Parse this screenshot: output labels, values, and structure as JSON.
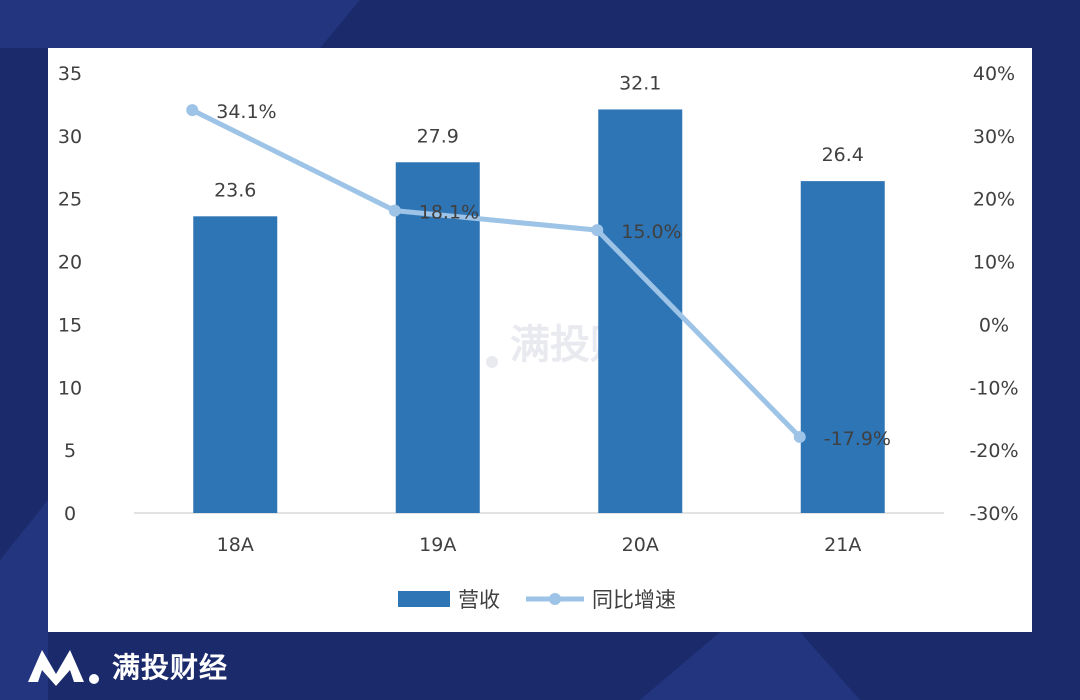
{
  "brand": {
    "name": "满投财经",
    "watermark": "满投财经",
    "logo_icon": "m-logo-icon"
  },
  "colors": {
    "background": "#1b2a6b",
    "bar": "#2e75b6",
    "line": "#9dc3e6",
    "text": "#404040",
    "axis": "#d9d9d9"
  },
  "chart_data": {
    "type": "bar",
    "categories": [
      "18A",
      "19A",
      "20A",
      "21A"
    ],
    "series": [
      {
        "name": "营收",
        "type": "bar",
        "axis": "left",
        "values": [
          23.6,
          27.9,
          32.1,
          26.4
        ],
        "labels": [
          "23.6",
          "27.9",
          "32.1",
          "26.4"
        ]
      },
      {
        "name": "同比增速",
        "type": "line",
        "axis": "right",
        "values": [
          34.1,
          18.1,
          15.0,
          -17.9
        ],
        "labels": [
          "34.1%",
          "18.1%",
          "15.0%",
          "-17.9%"
        ]
      }
    ],
    "y_left": {
      "min": 0,
      "max": 35,
      "ticks": [
        "0",
        "5",
        "10",
        "15",
        "20",
        "25",
        "30",
        "35"
      ]
    },
    "y_right": {
      "min": -30,
      "max": 40,
      "ticks": [
        "-30%",
        "-20%",
        "-10%",
        "0%",
        "10%",
        "20%",
        "30%",
        "40%"
      ]
    },
    "legend": {
      "position": "bottom",
      "items": [
        "营收",
        "同比增速"
      ]
    },
    "grid": false
  }
}
